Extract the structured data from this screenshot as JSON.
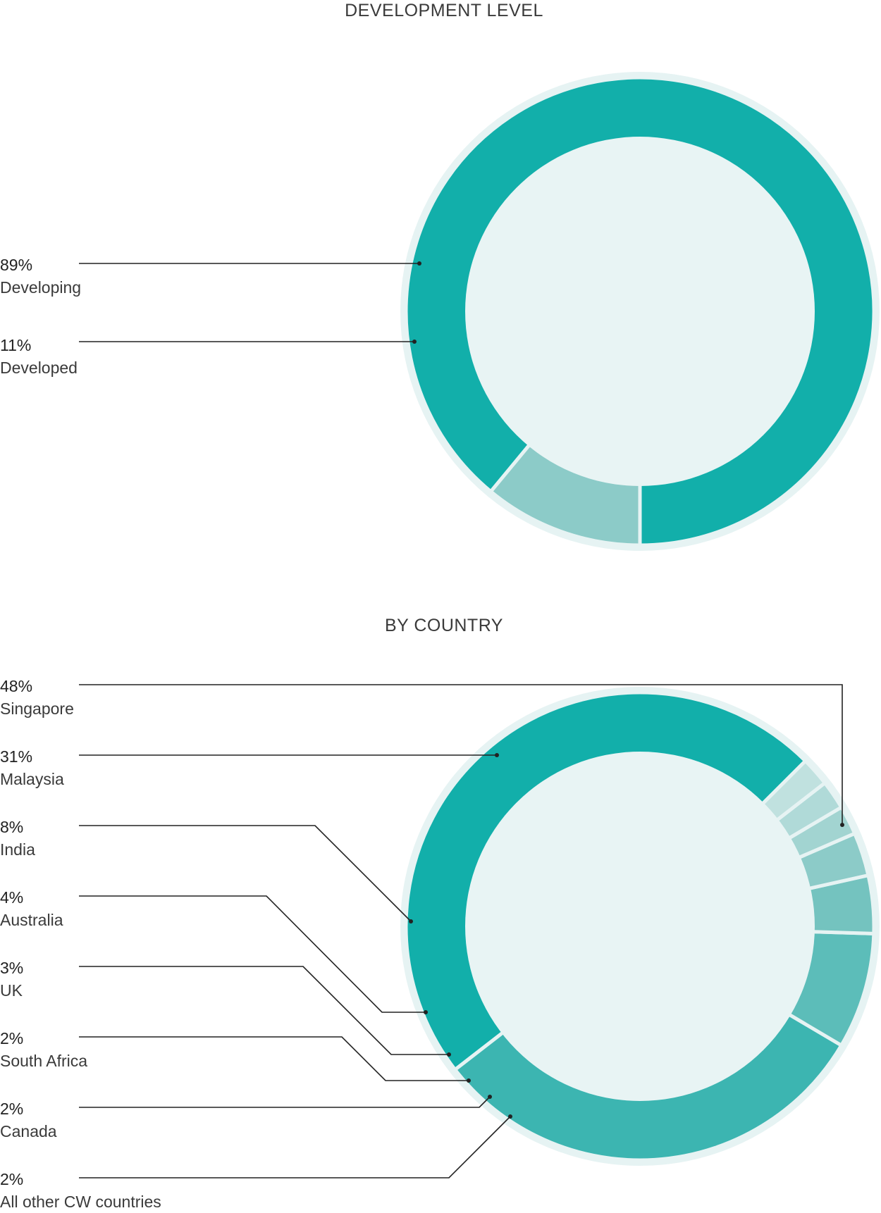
{
  "chart_data": [
    {
      "type": "pie",
      "title": "DEVELOPMENT LEVEL",
      "categories": [
        "Developing",
        "Developed"
      ],
      "values": [
        89,
        11
      ],
      "labels": [
        "89%",
        "11%"
      ],
      "colors": [
        "#12afaa",
        "#8ccbc8"
      ]
    },
    {
      "type": "pie",
      "title": "BY COUNTRY",
      "categories": [
        "Singapore",
        "Malaysia",
        "India",
        "Australia",
        "UK",
        "South Africa",
        "Canada",
        "All other CW countries"
      ],
      "values": [
        48,
        31,
        8,
        4,
        3,
        2,
        2,
        2
      ],
      "labels": [
        "48%",
        "31%",
        "8%",
        "4%",
        "3%",
        "2%",
        "2%",
        "2%"
      ],
      "colors": [
        "#12afaa",
        "#3cb5b1",
        "#5cbdb9",
        "#74c3bf",
        "#8ccbc8",
        "#a2d4d1",
        "#b0dad8",
        "#c0e1df"
      ]
    }
  ],
  "colors": {
    "ring_outline": "#e6f3f3",
    "inner_fill": "#e8f4f4",
    "leader": "#222222"
  }
}
